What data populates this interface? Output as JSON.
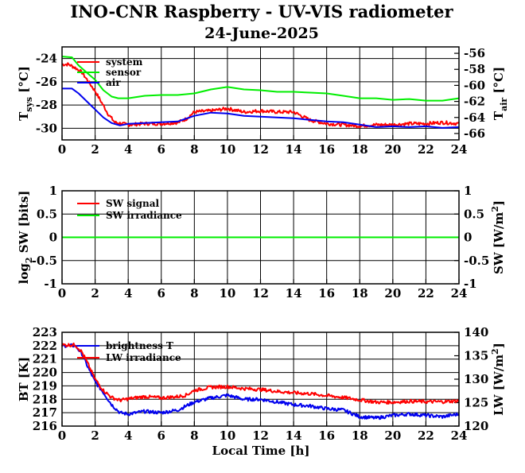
{
  "title": "INO-CNR Raspberry - UV-VIS radiometer",
  "date": "24-June-2025",
  "xlabel": "Local Time [h]",
  "chart_data": [
    {
      "type": "line",
      "id": "temperature",
      "ylabel": "T",
      "ylabel_sub": "sys",
      "ylabel_unit": "[°C]",
      "y2label": "T",
      "y2label_sub": "air",
      "y2label_unit": "[°C]",
      "xlim": [
        0,
        24
      ],
      "ylim": [
        -31,
        -23
      ],
      "y2lim": [
        -66.8,
        -55.2
      ],
      "xticks": [
        0,
        2,
        4,
        6,
        8,
        10,
        12,
        14,
        16,
        18,
        20,
        22,
        24
      ],
      "yticks": [
        -30,
        -28,
        -26,
        -24
      ],
      "y2ticks": [
        -66,
        -64,
        -62,
        -60,
        -58,
        -56
      ],
      "grid": true,
      "legend_position": "top-left",
      "series": [
        {
          "name": "system",
          "color": "#ff0000",
          "axis": "left",
          "noisy": true,
          "x": [
            0,
            0.4,
            0.8,
            1.2,
            1.6,
            2.0,
            2.4,
            2.8,
            3.2,
            3.6,
            4.0,
            5,
            6,
            7,
            7.5,
            8,
            9,
            10,
            11,
            12,
            13,
            14,
            15,
            16,
            17,
            18,
            19,
            20,
            21,
            22,
            23,
            24
          ],
          "y": [
            -24.5,
            -24.5,
            -24.8,
            -25.2,
            -26.0,
            -26.8,
            -27.8,
            -28.8,
            -29.5,
            -29.6,
            -29.7,
            -29.6,
            -29.6,
            -29.5,
            -29.2,
            -28.6,
            -28.5,
            -28.3,
            -28.6,
            -28.5,
            -28.6,
            -28.6,
            -29.3,
            -29.6,
            -29.7,
            -29.8,
            -29.7,
            -29.7,
            -29.6,
            -29.6,
            -29.5,
            -29.6
          ]
        },
        {
          "name": "sensor",
          "color": "#00ee00",
          "axis": "right",
          "noisy": false,
          "x": [
            0,
            0.6,
            1.0,
            1.6,
            2.0,
            2.5,
            3.0,
            3.4,
            4.0,
            5,
            6,
            7,
            8,
            9,
            10,
            11,
            12,
            13,
            14,
            15,
            16,
            17,
            18,
            19,
            20,
            21,
            22,
            23,
            24
          ],
          "y": [
            -56.4,
            -56.5,
            -57.5,
            -58.6,
            -59.3,
            -60.6,
            -61.4,
            -61.6,
            -61.6,
            -61.3,
            -61.2,
            -61.2,
            -61.0,
            -60.5,
            -60.2,
            -60.5,
            -60.6,
            -60.8,
            -60.8,
            -60.9,
            -61.0,
            -61.3,
            -61.6,
            -61.6,
            -61.8,
            -61.7,
            -61.9,
            -61.9,
            -61.6
          ]
        },
        {
          "name": "air",
          "color": "#0000ee",
          "axis": "right",
          "noisy": false,
          "x": [
            0,
            0.6,
            1.0,
            1.5,
            2.0,
            2.5,
            3.0,
            3.5,
            4.0,
            5,
            6,
            7,
            8,
            9,
            10,
            11,
            12,
            13,
            14,
            15,
            16,
            17,
            18,
            19,
            20,
            21,
            22,
            23,
            24
          ],
          "y": [
            -60.4,
            -60.4,
            -61.0,
            -62.0,
            -63.0,
            -64.0,
            -64.7,
            -65.0,
            -64.8,
            -64.7,
            -64.6,
            -64.5,
            -63.8,
            -63.4,
            -63.5,
            -63.8,
            -63.9,
            -64.0,
            -64.1,
            -64.3,
            -64.5,
            -64.6,
            -64.9,
            -65.2,
            -65.1,
            -65.2,
            -65.1,
            -65.3,
            -65.2
          ]
        }
      ]
    },
    {
      "type": "line",
      "id": "shortwave",
      "ylabel": "log",
      "ylabel_sub": "2",
      "ylabel_unit": " SW [bits]",
      "y2label": "SW [W/m",
      "y2label_sup": "2",
      "y2label_end": "]",
      "xlim": [
        0,
        24
      ],
      "ylim": [
        -1,
        1
      ],
      "y2lim": [
        -1,
        1
      ],
      "xticks": [
        0,
        2,
        4,
        6,
        8,
        10,
        12,
        14,
        16,
        18,
        20,
        22,
        24
      ],
      "yticks": [
        -1,
        -0.5,
        0,
        0.5,
        1
      ],
      "y2ticks": [
        -1,
        -0.5,
        0,
        0.5,
        1
      ],
      "grid": true,
      "legend_position": "top-left",
      "series": [
        {
          "name": "SW signal",
          "color": "#ff0000",
          "axis": "left",
          "noisy": false,
          "x": [
            0,
            24
          ],
          "y": [
            0,
            0
          ]
        },
        {
          "name": "SW irradiance",
          "color": "#00ee00",
          "axis": "right",
          "noisy": false,
          "x": [
            0,
            24
          ],
          "y": [
            0,
            0
          ]
        }
      ]
    },
    {
      "type": "line",
      "id": "longwave",
      "ylabel": "BT [K]",
      "y2label": "LW [W/m",
      "y2label_sup": "2",
      "y2label_end": "]",
      "xlim": [
        0,
        24
      ],
      "ylim": [
        216,
        223
      ],
      "y2lim": [
        120,
        140
      ],
      "xticks": [
        0,
        2,
        4,
        6,
        8,
        10,
        12,
        14,
        16,
        18,
        20,
        22,
        24
      ],
      "yticks": [
        216,
        217,
        218,
        219,
        220,
        221,
        222,
        223
      ],
      "y2ticks": [
        120,
        125,
        130,
        135,
        140
      ],
      "grid": true,
      "legend_position": "top-left",
      "series": [
        {
          "name": "brightness T",
          "color": "#0000ee",
          "axis": "left",
          "noisy": true,
          "x": [
            0,
            0.8,
            1.2,
            1.6,
            2.0,
            2.5,
            3.0,
            3.5,
            4.0,
            5,
            6,
            7,
            7.5,
            8,
            9,
            10,
            11,
            12,
            13,
            14,
            15,
            16,
            17,
            18,
            19,
            20,
            21,
            22,
            23,
            24
          ],
          "y": [
            222.0,
            222.0,
            221.4,
            220.3,
            219.3,
            218.5,
            217.6,
            217.0,
            216.9,
            217.1,
            217.0,
            217.2,
            217.5,
            217.8,
            218.1,
            218.3,
            218.0,
            218.0,
            217.8,
            217.6,
            217.5,
            217.3,
            217.2,
            216.7,
            216.6,
            216.8,
            216.9,
            216.8,
            216.7,
            216.9
          ]
        },
        {
          "name": "LW irradiance",
          "color": "#ff0000",
          "axis": "right",
          "noisy": true,
          "x": [
            0,
            0.8,
            1.2,
            1.6,
            2.0,
            2.5,
            3.0,
            3.5,
            4.0,
            5,
            6,
            7,
            7.5,
            8,
            9,
            10,
            11,
            12,
            13,
            14,
            15,
            16,
            17,
            18,
            19,
            20,
            21,
            22,
            23,
            24
          ],
          "y": [
            137.3,
            137.3,
            135.8,
            133.0,
            130.0,
            127.6,
            126.1,
            125.5,
            125.8,
            126.3,
            126.0,
            126.3,
            126.6,
            127.6,
            128.3,
            128.4,
            128.0,
            127.8,
            127.4,
            127.1,
            126.9,
            126.5,
            126.1,
            125.6,
            125.1,
            125.1,
            125.3,
            125.2,
            125.2,
            125.4
          ]
        }
      ]
    }
  ]
}
